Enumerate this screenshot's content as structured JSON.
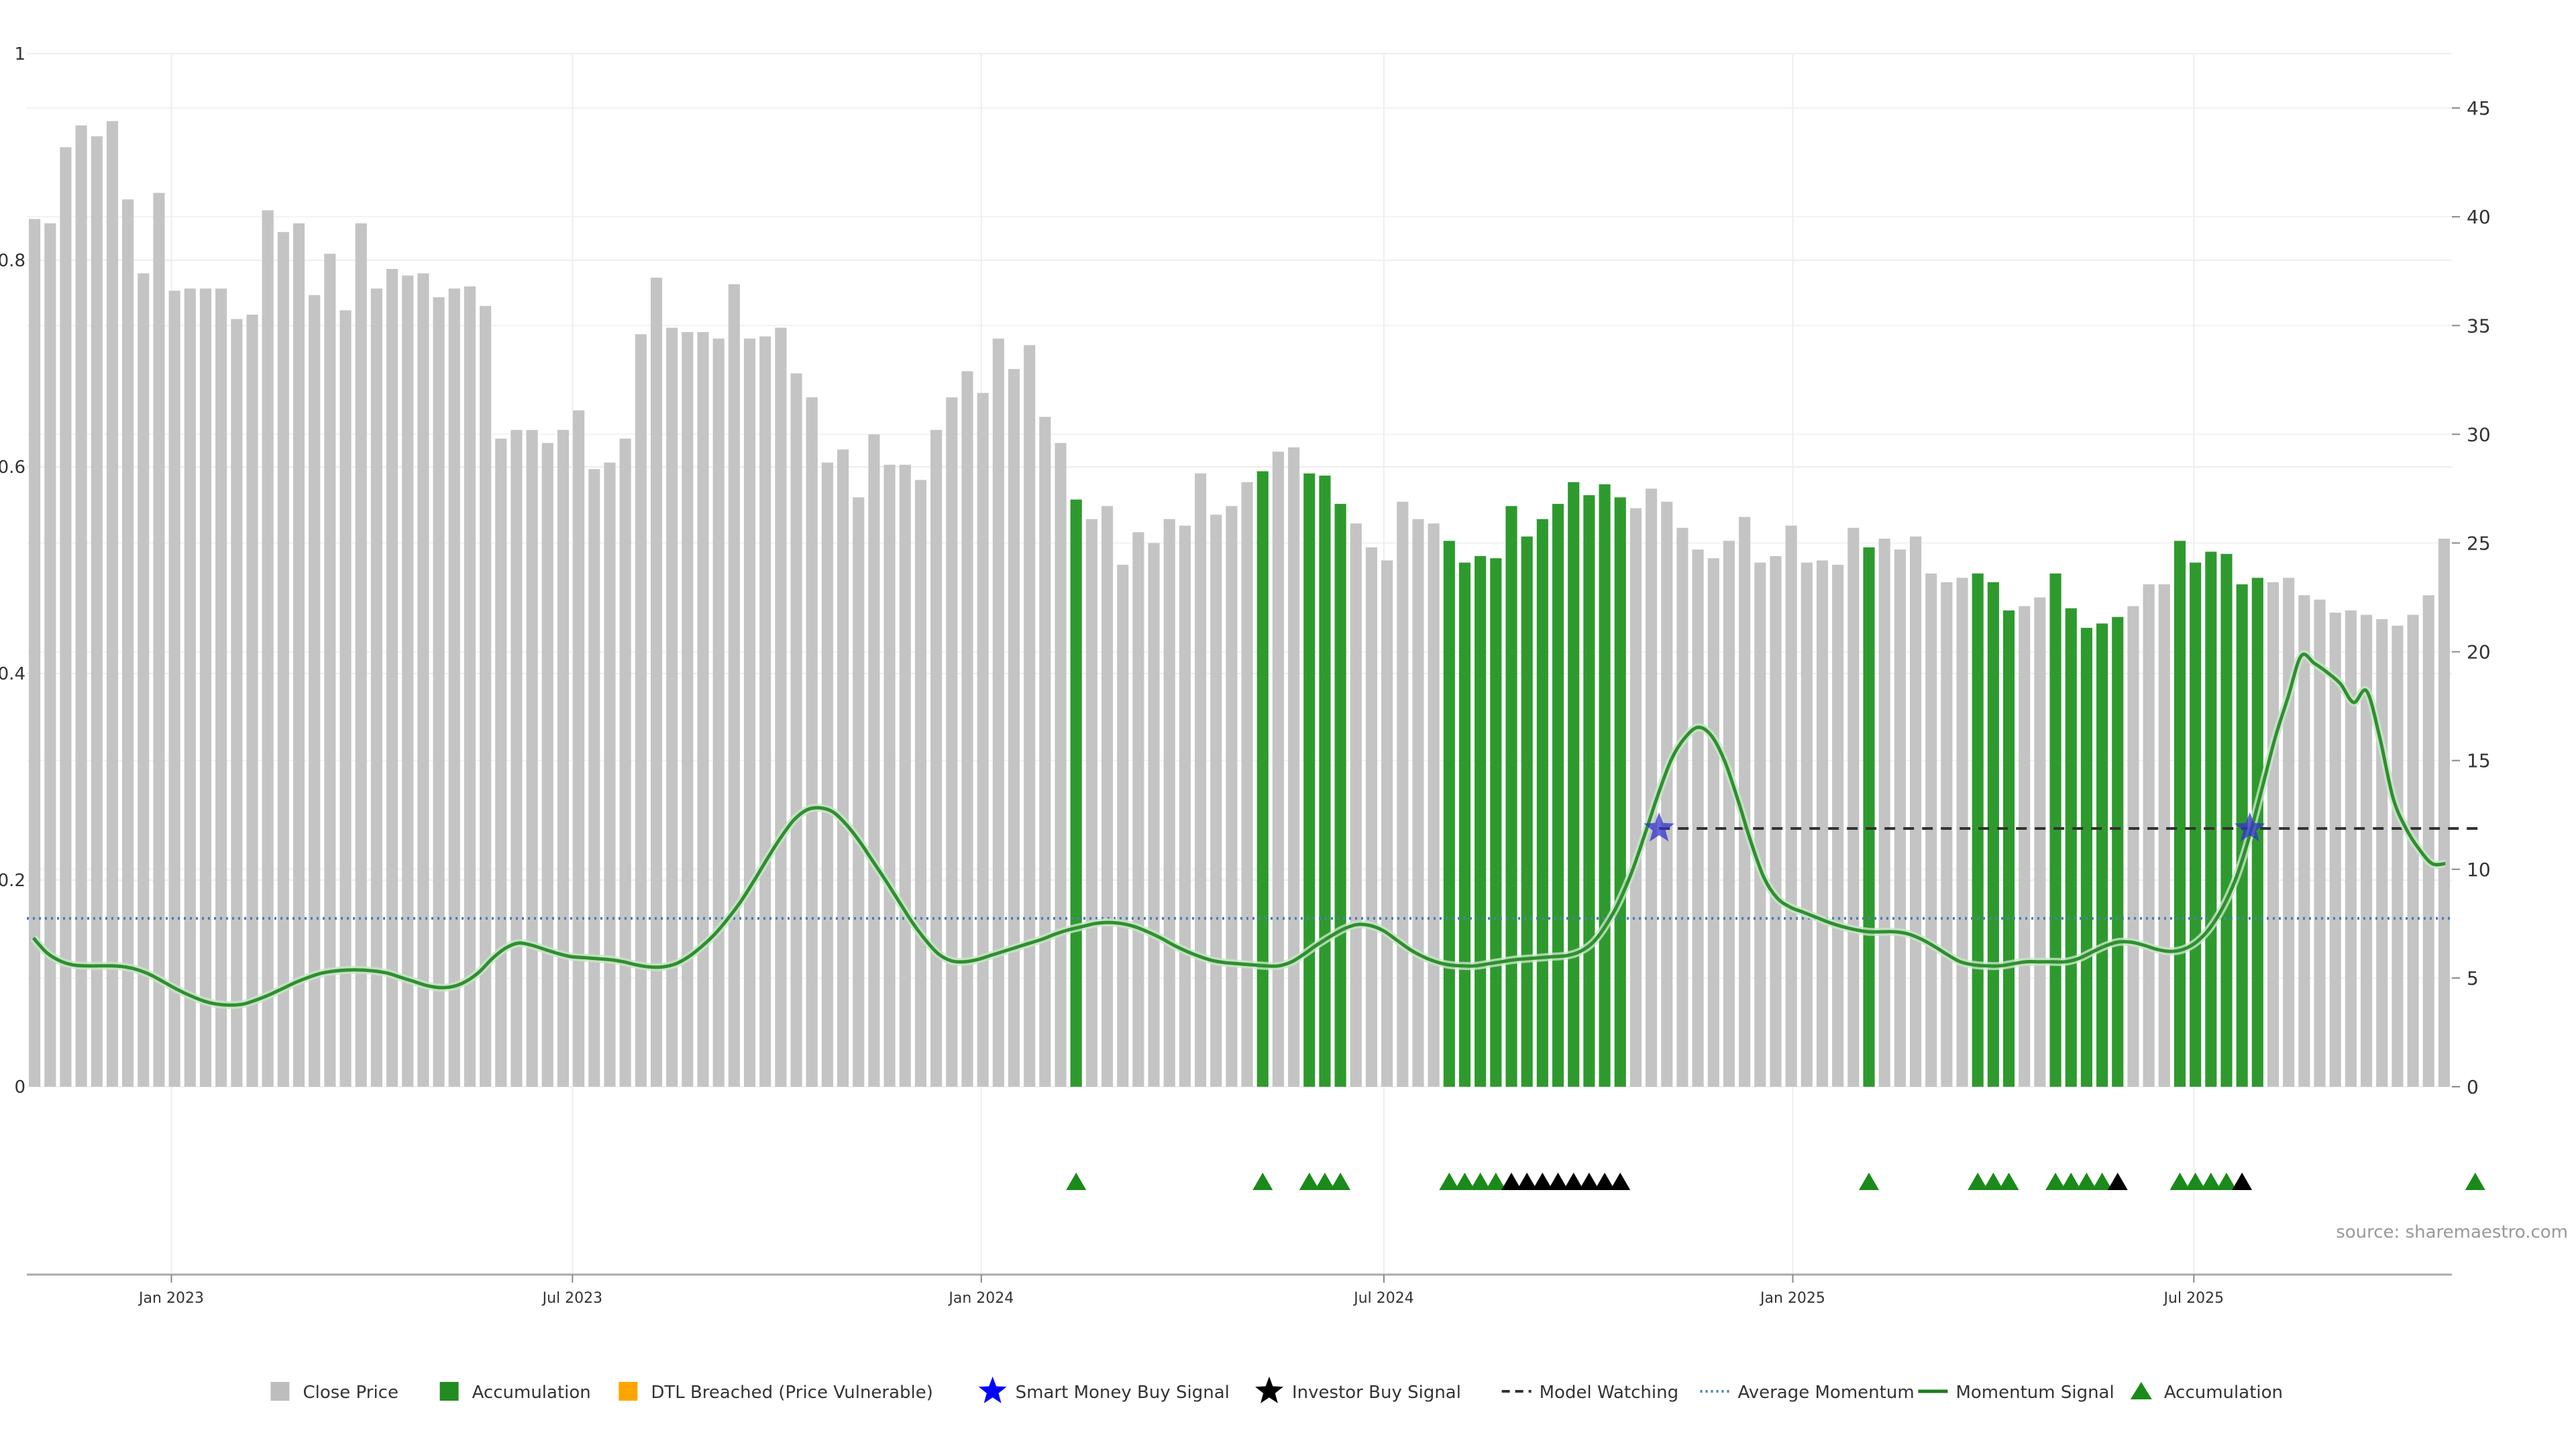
{
  "source": "source: sharemaestro.com",
  "chart_data": {
    "type": "bar",
    "left_axis": {
      "ticks": [
        0,
        0.2,
        0.4,
        0.6,
        0.8,
        1
      ],
      "labels": [
        "0",
        "0.2",
        "0.4",
        "0.6",
        "0.8",
        "1"
      ],
      "range": [
        0,
        1
      ]
    },
    "right_axis": {
      "ticks": [
        0,
        5,
        10,
        15,
        20,
        25,
        30,
        35,
        40,
        45
      ],
      "labels": [
        "0",
        "5",
        "10",
        "15",
        "20",
        "25",
        "30",
        "35",
        "40",
        "45"
      ],
      "range": [
        0,
        47.5
      ]
    },
    "x_axis": {
      "ticks": [
        9.3,
        35.1,
        61.4,
        87.3,
        113.6,
        139.4
      ],
      "labels": [
        "Jan 2023",
        "Jul 2023",
        "Jan 2024",
        "Jul 2024",
        "Jan 2025",
        "Jul 2025"
      ]
    },
    "grid": true,
    "legend_position": "bottom",
    "close_price": [
      39.9,
      39.7,
      43.2,
      44.2,
      43.7,
      44.4,
      40.8,
      37.4,
      41.1,
      36.6,
      36.7,
      36.7,
      36.7,
      35.3,
      35.5,
      40.3,
      39.3,
      39.7,
      36.4,
      38.3,
      35.7,
      39.7,
      36.7,
      37.6,
      37.3,
      37.4,
      36.3,
      36.7,
      36.8,
      35.9,
      29.8,
      30.2,
      30.2,
      29.6,
      30.2,
      31.1,
      28.4,
      28.7,
      29.8,
      34.6,
      37.2,
      34.9,
      34.7,
      34.7,
      34.4,
      36.9,
      34.4,
      34.5,
      34.9,
      32.8,
      31.7,
      28.7,
      29.3,
      27.1,
      30.0,
      28.6,
      28.6,
      27.9,
      30.2,
      31.7,
      32.9,
      31.9,
      34.4,
      33.0,
      34.1,
      30.8,
      29.6,
      27.0,
      26.1,
      26.7,
      24.0,
      25.5,
      25.0,
      26.1,
      25.8,
      28.2,
      26.3,
      26.7,
      27.8,
      28.3,
      29.2,
      29.4,
      28.2,
      28.1,
      26.8,
      25.9,
      24.8,
      24.2,
      26.9,
      26.1,
      25.9,
      25.1,
      24.1,
      24.4,
      24.3,
      26.7,
      25.3,
      26.1,
      26.8,
      27.8,
      27.2,
      27.7,
      27.1,
      26.6,
      27.5,
      26.9,
      25.7,
      24.7,
      24.3,
      25.1,
      26.2,
      24.1,
      24.4,
      25.8,
      24.1,
      24.2,
      24.0,
      25.7,
      24.8,
      25.2,
      24.7,
      25.3,
      23.6,
      23.2,
      23.4,
      23.6,
      23.2,
      21.9,
      22.1,
      22.5,
      23.6,
      22.0,
      21.1,
      21.3,
      21.6,
      22.1,
      23.1,
      23.1,
      25.1,
      24.1,
      24.6,
      24.5,
      23.1,
      23.4,
      23.2,
      23.4,
      22.6,
      22.4,
      21.8,
      21.9,
      21.7,
      21.5,
      21.2,
      21.7,
      22.6,
      25.2
    ],
    "accumulation_indices": [
      67,
      79,
      82,
      83,
      84,
      91,
      92,
      93,
      94,
      95,
      96,
      97,
      98,
      99,
      100,
      101,
      102,
      118,
      125,
      126,
      127,
      130,
      131,
      132,
      133,
      134,
      138,
      139,
      140,
      141,
      142,
      143,
      157
    ],
    "momentum_signal": [
      0.144,
      0.13,
      0.122,
      0.118,
      0.117,
      0.117,
      0.117,
      0.116,
      0.113,
      0.108,
      0.101,
      0.094,
      0.088,
      0.083,
      0.08,
      0.079,
      0.08,
      0.084,
      0.089,
      0.095,
      0.101,
      0.106,
      0.11,
      0.112,
      0.113,
      0.113,
      0.112,
      0.11,
      0.106,
      0.102,
      0.098,
      0.096,
      0.097,
      0.102,
      0.111,
      0.124,
      0.134,
      0.139,
      0.137,
      0.133,
      0.129,
      0.126,
      0.125,
      0.124,
      0.123,
      0.121,
      0.118,
      0.116,
      0.116,
      0.119,
      0.126,
      0.136,
      0.148,
      0.163,
      0.18,
      0.2,
      0.221,
      0.241,
      0.258,
      0.268,
      0.27,
      0.266,
      0.254,
      0.238,
      0.219,
      0.2,
      0.18,
      0.16,
      0.143,
      0.129,
      0.122,
      0.121,
      0.123,
      0.127,
      0.131,
      0.135,
      0.139,
      0.143,
      0.148,
      0.152,
      0.155,
      0.158,
      0.159,
      0.158,
      0.155,
      0.15,
      0.144,
      0.137,
      0.131,
      0.126,
      0.122,
      0.12,
      0.119,
      0.118,
      0.117,
      0.117,
      0.121,
      0.129,
      0.138,
      0.146,
      0.153,
      0.157,
      0.156,
      0.151,
      0.142,
      0.133,
      0.126,
      0.121,
      0.118,
      0.117,
      0.117,
      0.119,
      0.121,
      0.123,
      0.124,
      0.125,
      0.126,
      0.127,
      0.131,
      0.14,
      0.157,
      0.18,
      0.21,
      0.247,
      0.285,
      0.318,
      0.338,
      0.348,
      0.34,
      0.316,
      0.279,
      0.238,
      0.203,
      0.183,
      0.174,
      0.169,
      0.164,
      0.159,
      0.155,
      0.152,
      0.15,
      0.15,
      0.15,
      0.148,
      0.143,
      0.136,
      0.128,
      0.121,
      0.118,
      0.117,
      0.117,
      0.119,
      0.121,
      0.121,
      0.121,
      0.121,
      0.124,
      0.13,
      0.136,
      0.14,
      0.14,
      0.137,
      0.133,
      0.131,
      0.133,
      0.14,
      0.153,
      0.173,
      0.201,
      0.24,
      0.288,
      0.337,
      0.377,
      0.417,
      0.41,
      0.401,
      0.39,
      0.372,
      0.383,
      0.338,
      0.28,
      0.25,
      0.23,
      0.216,
      0.216
    ],
    "average_momentum": 0.163,
    "model_watching": {
      "y": 0.25,
      "start_index": 104.5,
      "end_index": 157.5
    },
    "smart_money_buy_signals": [
      {
        "index": 104.5,
        "y": 0.25
      },
      {
        "index": 142.5,
        "y": 0.25
      }
    ],
    "triangle_markers": [
      {
        "index": 67,
        "kind": "Accumulation"
      },
      {
        "index": 79,
        "kind": "Accumulation"
      },
      {
        "index": 82,
        "kind": "Accumulation"
      },
      {
        "index": 83,
        "kind": "Accumulation"
      },
      {
        "index": 84,
        "kind": "Accumulation"
      },
      {
        "index": 91,
        "kind": "Accumulation"
      },
      {
        "index": 92,
        "kind": "Accumulation"
      },
      {
        "index": 93,
        "kind": "Accumulation"
      },
      {
        "index": 94,
        "kind": "Accumulation"
      },
      {
        "index": 95,
        "kind": "Investor"
      },
      {
        "index": 96,
        "kind": "Investor"
      },
      {
        "index": 97,
        "kind": "Investor"
      },
      {
        "index": 98,
        "kind": "Investor"
      },
      {
        "index": 99,
        "kind": "Investor"
      },
      {
        "index": 100,
        "kind": "Investor"
      },
      {
        "index": 101,
        "kind": "Investor"
      },
      {
        "index": 102,
        "kind": "Investor"
      },
      {
        "index": 118,
        "kind": "Accumulation"
      },
      {
        "index": 125,
        "kind": "Accumulation"
      },
      {
        "index": 126,
        "kind": "Accumulation"
      },
      {
        "index": 127,
        "kind": "Accumulation"
      },
      {
        "index": 130,
        "kind": "Accumulation"
      },
      {
        "index": 131,
        "kind": "Accumulation"
      },
      {
        "index": 132,
        "kind": "Accumulation"
      },
      {
        "index": 133,
        "kind": "Accumulation"
      },
      {
        "index": 134,
        "kind": "Investor"
      },
      {
        "index": 138,
        "kind": "Accumulation"
      },
      {
        "index": 139,
        "kind": "Accumulation"
      },
      {
        "index": 140,
        "kind": "Accumulation"
      },
      {
        "index": 141,
        "kind": "Accumulation"
      },
      {
        "index": 142,
        "kind": "Investor"
      },
      {
        "index": 157,
        "kind": "Accumulation"
      }
    ],
    "legend": [
      {
        "label": "Close Price",
        "marker": "square",
        "color": "#bdbdbd"
      },
      {
        "label": "Accumulation",
        "marker": "square",
        "color": "#228b22"
      },
      {
        "label": "DTL Breached (Price Vulnerable)",
        "marker": "square",
        "color": "#ffa500"
      },
      {
        "label": "Smart Money Buy Signal",
        "marker": "star",
        "color": "#0000ff"
      },
      {
        "label": "Investor Buy Signal",
        "marker": "star",
        "color": "#000000"
      },
      {
        "label": "Model Watching",
        "marker": "dash",
        "color": "#333333"
      },
      {
        "label": "Average Momentum",
        "marker": "dotted",
        "color": "#4a7fb5"
      },
      {
        "label": "Momentum Signal",
        "marker": "line",
        "color": "#1f7a1f"
      },
      {
        "label": "Accumulation",
        "marker": "triangle",
        "color": "#1a8a1a"
      }
    ],
    "colors": {
      "close_price": "#c4c4c4",
      "accumulation_bar": "#2e9a2e",
      "momentum": "#2f8f2f",
      "average_momentum": "#4a7fb5",
      "model_watching": "#333333",
      "smart_money": "#3333cc",
      "investor": "#000000",
      "triangle_accumulation": "#1a8a1a"
    }
  }
}
